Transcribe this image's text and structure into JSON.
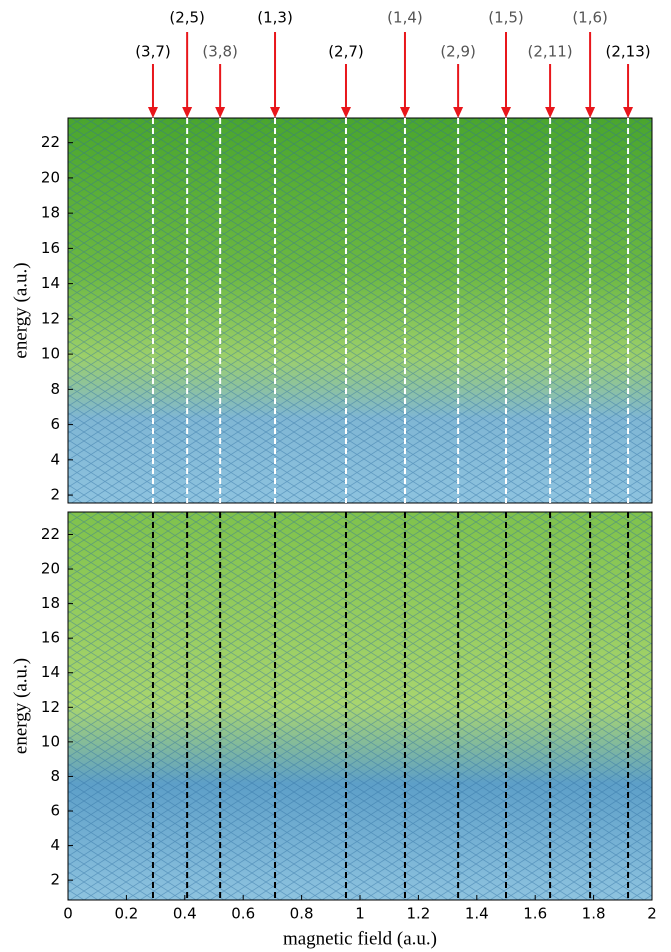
{
  "chart_data": [
    {
      "type": "heatmap",
      "ylabel": "energy (a.u.)",
      "xlim": [
        0,
        2
      ],
      "ylim": [
        1.55,
        23.4
      ],
      "yticks": [
        2,
        4,
        6,
        8,
        10,
        12,
        14,
        16,
        18,
        20,
        22
      ],
      "line_color": "#ffffff",
      "arrow_color": "#e8161b",
      "annotations": [
        {
          "text": "(3,7)",
          "x": 0.291,
          "color": "#000000"
        },
        {
          "text": "(2,5)",
          "x": 0.408,
          "color": "#000000"
        },
        {
          "text": "(3,8)",
          "x": 0.521,
          "color": "#555555"
        },
        {
          "text": "(1,3)",
          "x": 0.709,
          "color": "#000000"
        },
        {
          "text": "(2,7)",
          "x": 0.952,
          "color": "#000000"
        },
        {
          "text": "(1,4)",
          "x": 1.154,
          "color": "#555555"
        },
        {
          "text": "(2,9)",
          "x": 1.336,
          "color": "#555555"
        },
        {
          "text": "(1,5)",
          "x": 1.5,
          "color": "#555555"
        },
        {
          "text": "(2,11)",
          "x": 1.651,
          "color": "#555555"
        },
        {
          "text": "(1,6)",
          "x": 1.788,
          "color": "#555555"
        },
        {
          "text": "(2,13)",
          "x": 1.918,
          "color": "#000000"
        }
      ]
    },
    {
      "type": "heatmap",
      "ylabel": "energy (a.u.)",
      "xlabel": "magnetic field (a.u.)",
      "xlim": [
        0,
        2
      ],
      "ylim": [
        0.85,
        23.3
      ],
      "yticks": [
        2,
        4,
        6,
        8,
        10,
        12,
        14,
        16,
        18,
        20,
        22
      ],
      "xticks": [
        0,
        0.2,
        0.4,
        0.6,
        0.8,
        1,
        1.2,
        1.4,
        1.6,
        1.8,
        2
      ],
      "line_color": "#000000",
      "vlines": [
        0.291,
        0.408,
        0.521,
        0.709,
        0.952,
        1.154,
        1.336,
        1.5,
        1.651,
        1.788,
        1.918
      ]
    }
  ]
}
